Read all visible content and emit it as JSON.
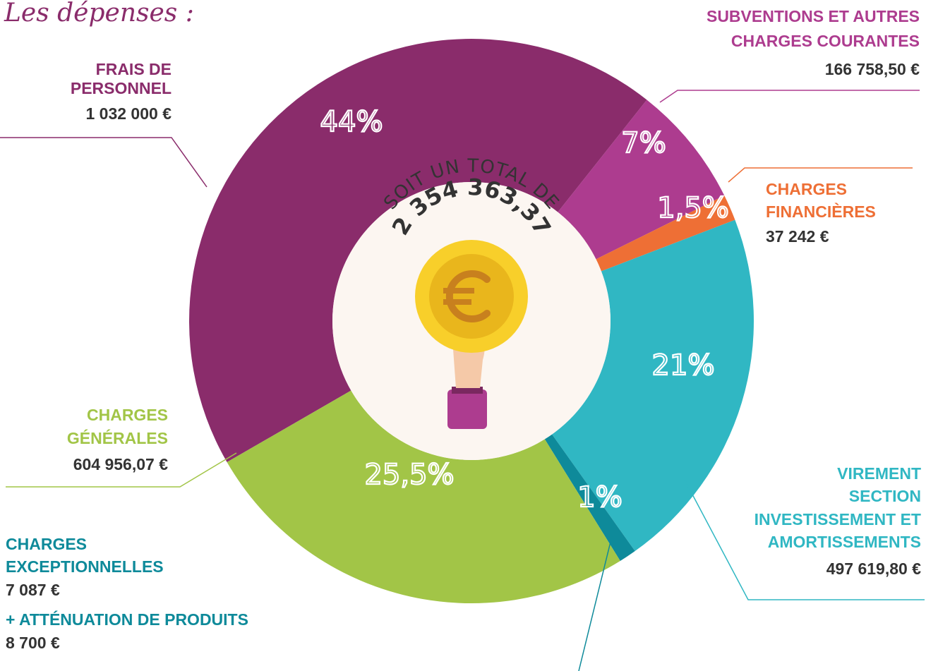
{
  "chart_data": {
    "type": "pie",
    "title": "Les dépenses :",
    "center_caption": "SOIT UN TOTAL DE",
    "total": "2 354 363,37",
    "categories": [
      [
        "FRAIS DE",
        "PERSONNEL"
      ],
      [
        "SUBVENTIONS ET AUTRES",
        "CHARGES COURANTES"
      ],
      [
        "CHARGES",
        "FINANCIÈRES"
      ],
      [
        "VIREMENT",
        "SECTION",
        "INVESTISSEMENT ET",
        "AMORTISSEMENTS"
      ],
      [
        "CHARGES",
        "EXCEPTIONNELLES"
      ],
      [
        "CHARGES",
        "GÉNÉRALES"
      ]
    ],
    "amounts": [
      "1 032 000 €",
      "166 758,50 €",
      "37 242 €",
      "497 619,80 €",
      "7 087 €",
      "604 956,07 €"
    ],
    "extra": {
      "label": "+ ATTÉNUATION DE PRODUITS",
      "amount": "8 700 €"
    },
    "values": [
      44,
      7,
      1.5,
      21,
      1,
      25.5
    ],
    "value_labels": [
      "44%",
      "7%",
      "1,5%",
      "21%",
      "1%",
      "25,5%"
    ],
    "colors": [
      "#8a2c6b",
      "#ad3c8f",
      "#ee6f35",
      "#30b7c3",
      "#0e8a9a",
      "#a2c547"
    ]
  }
}
